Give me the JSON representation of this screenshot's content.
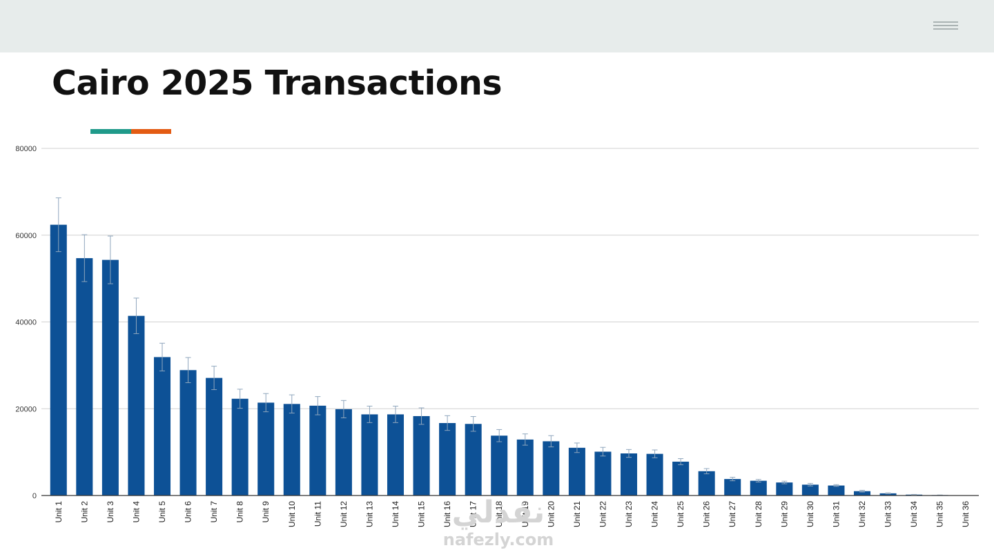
{
  "header": {
    "menu_icon": "hamburger-menu-icon"
  },
  "slide": {
    "title": "Cairo 2025 Transactions",
    "accent_colors": [
      "#1f9a8a",
      "#e35b13"
    ]
  },
  "colors": {
    "bar": "#0d5196",
    "error_bar": "#8fa6bd",
    "grid": "#d0d0d0",
    "axis": "#333333"
  },
  "chart_data": {
    "type": "bar",
    "title": "",
    "xlabel": "",
    "ylabel": "",
    "ylim": [
      0,
      80000
    ],
    "yticks": [
      0,
      20000,
      40000,
      60000,
      80000
    ],
    "grid": true,
    "categories": [
      "Unit 1",
      "Unit 2",
      "Unit 3",
      "Unit 4",
      "Unit 5",
      "Unit 6",
      "Unit 7",
      "Unit 8",
      "Unit 9",
      "Unit 10",
      "Unit 11",
      "Unit 12",
      "Unit 13",
      "Unit 14",
      "Unit 15",
      "Unit 16",
      "Unit 17",
      "Unit 18",
      "Unit 19",
      "Unit 20",
      "Unit 21",
      "Unit 22",
      "Unit 23",
      "Unit 24",
      "Unit 25",
      "Unit 26",
      "Unit 27",
      "Unit 28",
      "Unit 29",
      "Unit 30",
      "Unit 31",
      "Unit 32",
      "Unit 33",
      "Unit 34",
      "Unit 35",
      "Unit 36"
    ],
    "values": [
      62400,
      54700,
      54300,
      41400,
      31900,
      28900,
      27100,
      22300,
      21400,
      21100,
      20700,
      19900,
      18700,
      18700,
      18300,
      16700,
      16500,
      13800,
      12900,
      12500,
      11000,
      10100,
      9700,
      9600,
      7800,
      5600,
      3800,
      3400,
      3000,
      2500,
      2300,
      1000,
      500,
      200,
      100,
      0
    ],
    "error": [
      6200,
      5400,
      5500,
      4100,
      3200,
      2900,
      2700,
      2200,
      2100,
      2100,
      2100,
      2000,
      1900,
      1900,
      1900,
      1700,
      1700,
      1400,
      1300,
      1300,
      1100,
      1000,
      900,
      900,
      700,
      600,
      400,
      300,
      300,
      300,
      200,
      200,
      100,
      50,
      20,
      0
    ]
  },
  "watermark": {
    "arabic": "نفذلي",
    "latin": "nafezly.com"
  }
}
